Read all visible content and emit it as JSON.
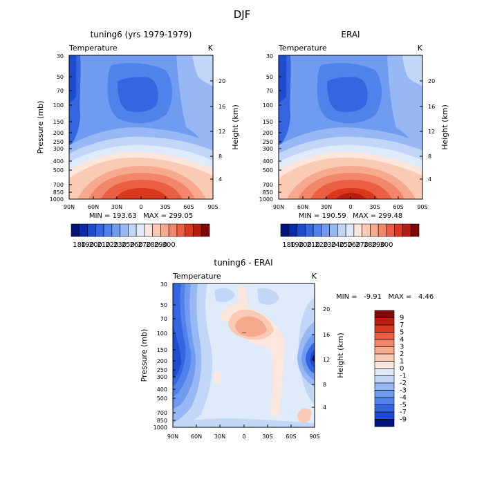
{
  "figure": {
    "title": "DJF"
  },
  "chart_data": [
    {
      "type": "heatmap",
      "title": "tuning6 (yrs 1979-1979)",
      "field_label": "Temperature",
      "units": "K",
      "ylabel": "Pressure (mb)",
      "ylabel_right": "Height (km)",
      "x_ticks": [
        "90N",
        "60N",
        "30N",
        "0",
        "30S",
        "60S",
        "90S"
      ],
      "y_ticks": [
        "30",
        "50",
        "70",
        "100",
        "150",
        "200",
        "250",
        "300",
        "400",
        "500",
        "700",
        "850",
        "1000"
      ],
      "y_ticks_right": [
        "20",
        "16",
        "12",
        "8",
        "4"
      ],
      "stats": "MIN = 193.63   MAX = 299.05",
      "colorbar": {
        "labels": [
          "180",
          "190",
          "200",
          "210",
          "220",
          "230",
          "250",
          "260",
          "270",
          "280",
          "290",
          "300"
        ],
        "colors": [
          "#00137a",
          "#0a2ba6",
          "#1e4cd0",
          "#3366e0",
          "#4f82ea",
          "#6f9cf0",
          "#97b8f4",
          "#c2d6f8",
          "#dfeafb",
          "#fde7dc",
          "#fbcab5",
          "#f7a98e",
          "#f2866a",
          "#ea5f42",
          "#d9381f",
          "#b81e10",
          "#7e0805"
        ]
      },
      "x_range": [
        "90N",
        "90S"
      ],
      "y_range_mb": [
        1000,
        30
      ],
      "y_scale": "log"
    },
    {
      "type": "heatmap",
      "title": "ERAI",
      "field_label": "Temperature",
      "units": "K",
      "ylabel": "Pressure (mb)",
      "ylabel_right": "Height (km)",
      "x_ticks": [
        "90N",
        "60N",
        "30N",
        "0",
        "30S",
        "60S",
        "90S"
      ],
      "y_ticks": [
        "30",
        "50",
        "70",
        "100",
        "150",
        "200",
        "250",
        "300",
        "400",
        "500",
        "700",
        "850",
        "1000"
      ],
      "y_ticks_right": [
        "20",
        "16",
        "12",
        "8",
        "4"
      ],
      "stats": "MIN = 190.59   MAX = 299.48",
      "colorbar": {
        "labels": [
          "180",
          "190",
          "200",
          "210",
          "220",
          "230",
          "240",
          "250",
          "260",
          "270",
          "280",
          "290",
          "300"
        ],
        "colors": [
          "#00137a",
          "#0a2ba6",
          "#1e4cd0",
          "#3366e0",
          "#4f82ea",
          "#6f9cf0",
          "#97b8f4",
          "#c2d6f8",
          "#dfeafb",
          "#fde7dc",
          "#fbcab5",
          "#f7a98e",
          "#f2866a",
          "#ea5f42",
          "#d9381f",
          "#b81e10",
          "#7e0805"
        ]
      },
      "x_range": [
        "90N",
        "90S"
      ],
      "y_range_mb": [
        1000,
        30
      ],
      "y_scale": "log"
    },
    {
      "type": "heatmap",
      "title": "tuning6 - ERAI",
      "field_label": "Temperature",
      "units": "K",
      "ylabel": "Pressure (mb)",
      "ylabel_right": "Height (km)",
      "x_ticks": [
        "90N",
        "60N",
        "30N",
        "0",
        "30S",
        "60S",
        "90S"
      ],
      "y_ticks": [
        "30",
        "50",
        "70",
        "100",
        "150",
        "200",
        "250",
        "300",
        "400",
        "500",
        "700",
        "850",
        "1000"
      ],
      "y_ticks_right": [
        "20",
        "16",
        "12",
        "8",
        "4"
      ],
      "stats": "MIN =   -9.91   MAX =   4.46",
      "colorbar": {
        "labels": [
          "9",
          "7",
          "5",
          "4",
          "3",
          "2",
          "1",
          "0",
          "-1",
          "-2",
          "-3",
          "-4",
          "-5",
          "-7",
          "-9"
        ],
        "colors": [
          "#7e0805",
          "#b81e10",
          "#d9381f",
          "#ea5f42",
          "#f2866a",
          "#f7a98e",
          "#fbcab5",
          "#fde7dc",
          "#dfeafb",
          "#c2d6f8",
          "#97b8f4",
          "#6f9cf0",
          "#4f82ea",
          "#3366e0",
          "#1e4cd0",
          "#00137a"
        ]
      },
      "x_range": [
        "90N",
        "90S"
      ],
      "y_range_mb": [
        1000,
        30
      ],
      "y_scale": "log"
    }
  ]
}
